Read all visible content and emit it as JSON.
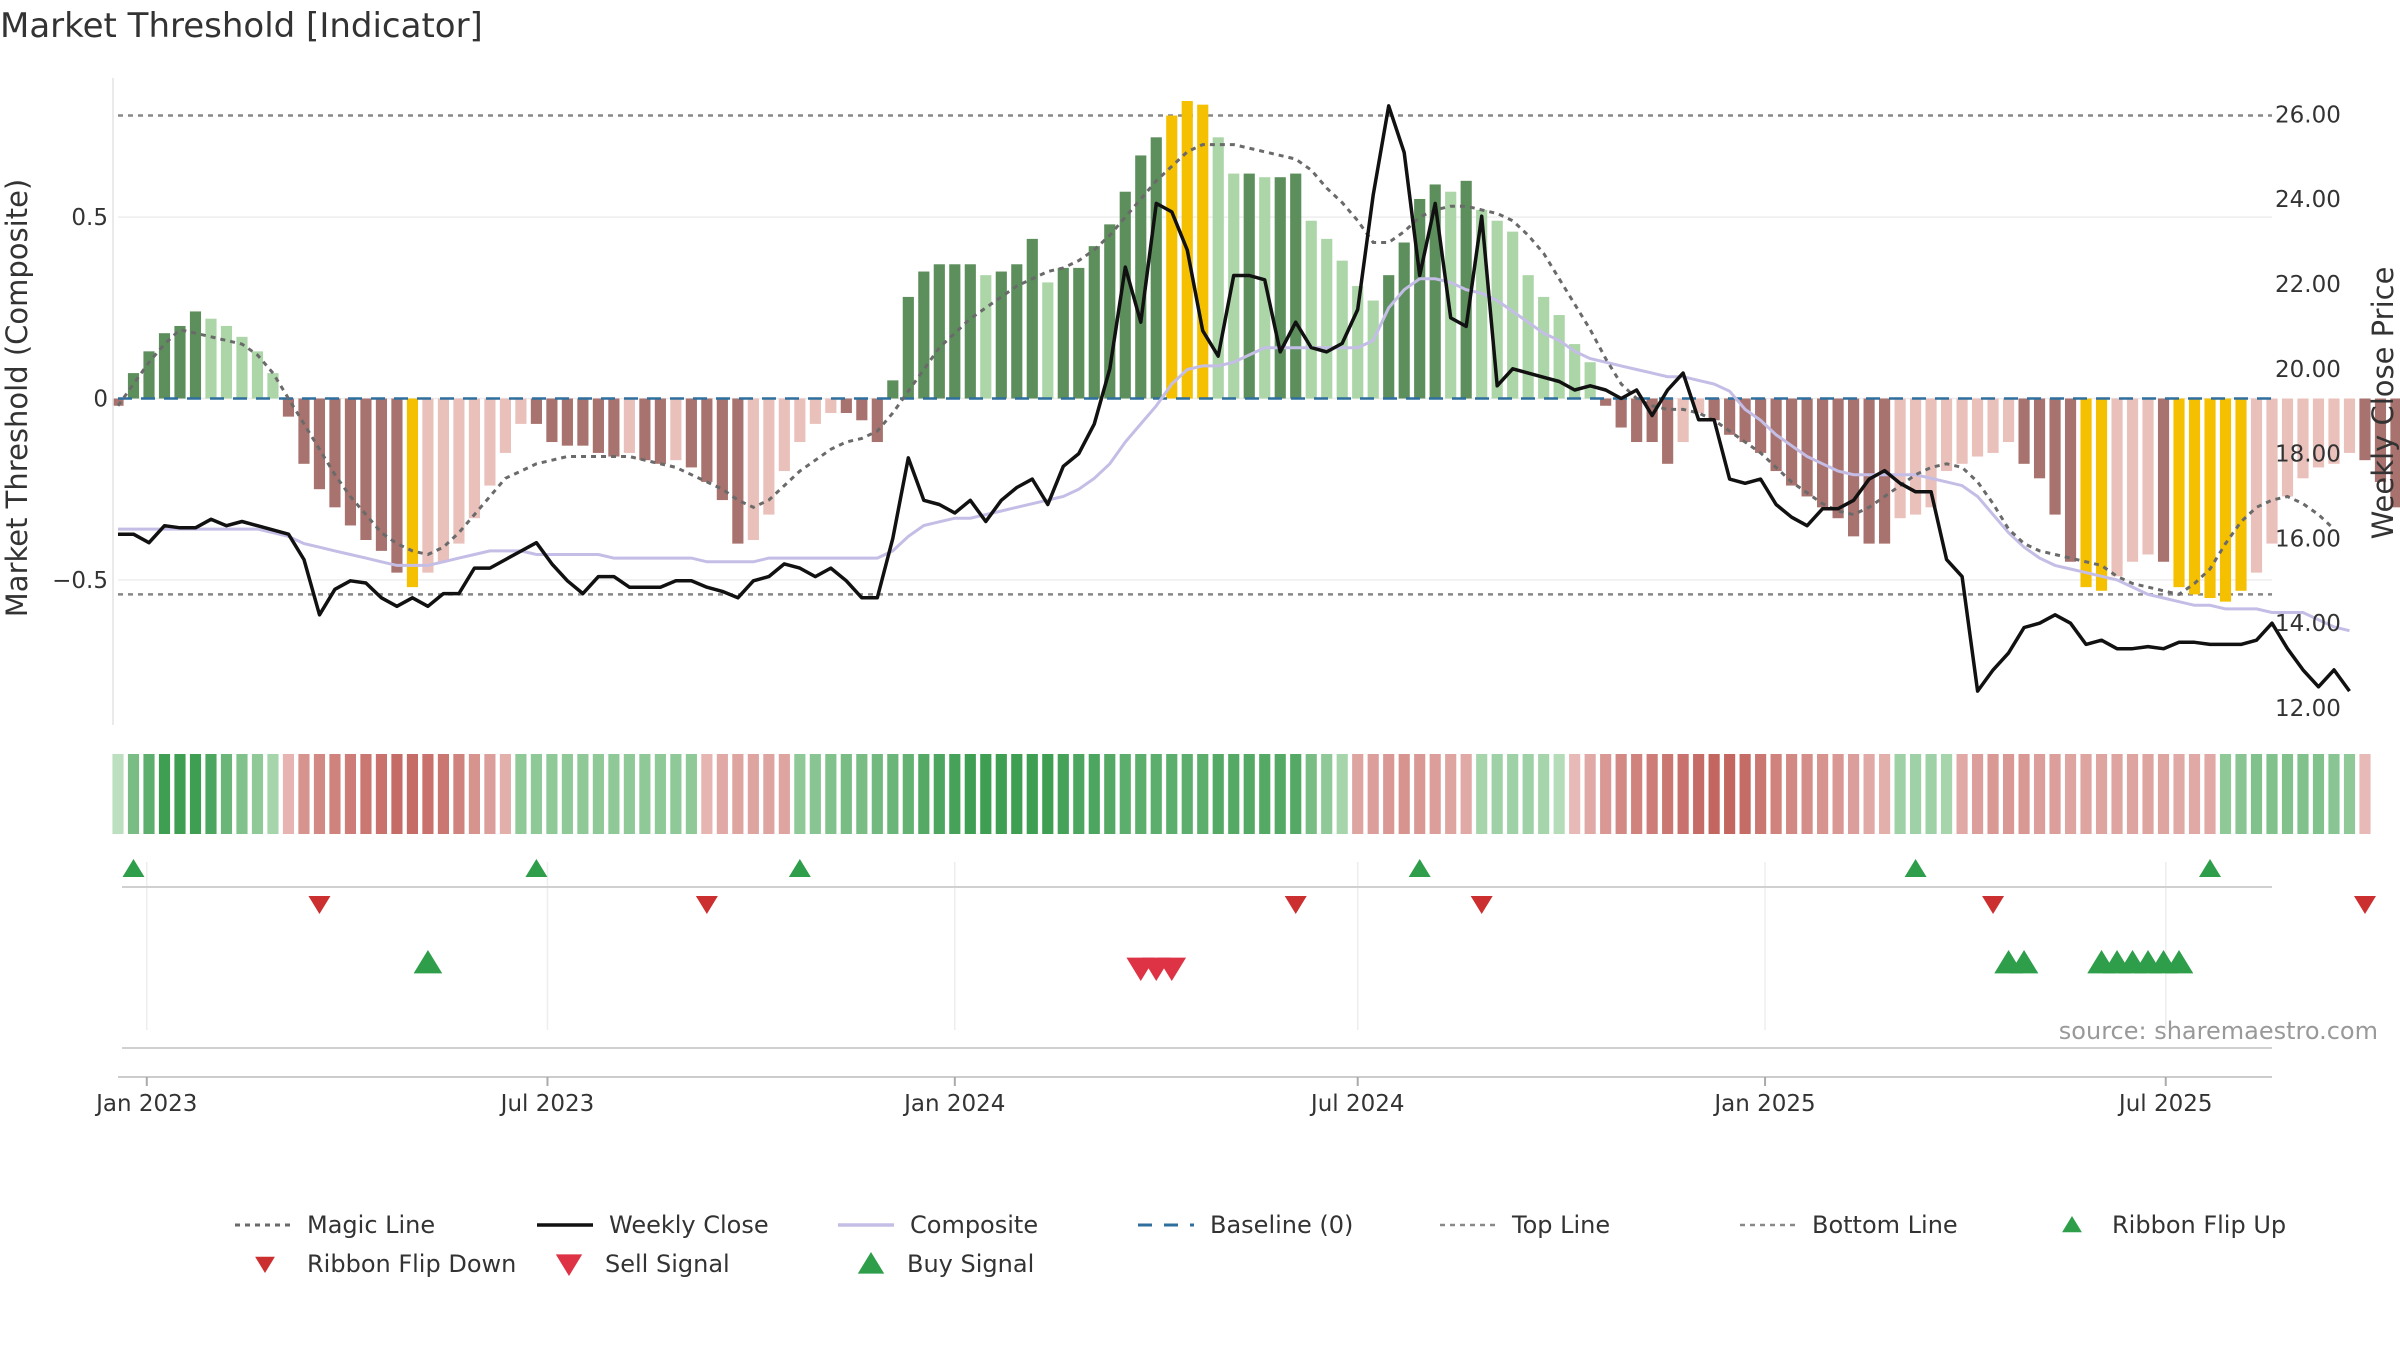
{
  "title": "Market Threshold [Indicator]",
  "source": "source: sharemaestro.com",
  "colors": {
    "gain_strong": "#5d8f5d",
    "gain_weak": "#acd5a8",
    "loss_strong": "#a8726e",
    "loss_weak": "#eac0bb",
    "extreme": "#f5c000",
    "close_line": "#111111",
    "composite_line": "#c4bde6",
    "magic_line": "#6a6a6a",
    "baseline": "#2e6f9e",
    "threshold_line": "#888888",
    "ribbon_flip_up": "#2e9e4a",
    "ribbon_flip_down": "#cc2f2f",
    "sell_signal": "#dd3344",
    "buy_signal": "#2e9e4a"
  },
  "chart_data": {
    "type": "bar",
    "title": "Market Threshold [Indicator]",
    "x_axis": {
      "type": "date",
      "range": [
        "2022-12-19",
        "2025-08-18"
      ],
      "ticks": [
        "2023-01-01",
        "2023-07-01",
        "2024-01-01",
        "2024-07-01",
        "2025-01-01",
        "2025-07-01"
      ],
      "tick_labels": [
        "Jan 2023",
        "Jul 2023",
        "Jan 2024",
        "Jul 2024",
        "Jan 2025",
        "Jul 2025"
      ]
    },
    "y_left": {
      "label": "Market Threshold (Composite)",
      "range": [
        -0.9,
        0.9
      ],
      "ticks": [
        -0.5,
        0,
        0.5
      ],
      "tick_labels": [
        "−0.5",
        "0",
        "0.5"
      ]
    },
    "y_right": {
      "label": "Weekly Close Price",
      "range": [
        11.6,
        27.0
      ],
      "ticks": [
        12,
        14,
        16,
        18,
        20,
        22,
        24,
        26
      ],
      "tick_labels": [
        "12.00",
        "14.00",
        "16.00",
        "18.00",
        "20.00",
        "22.00",
        "24.00",
        "26.00"
      ]
    },
    "grid": true,
    "legend_position": "bottom",
    "start_date": "2022-12-19",
    "top_line": 0.78,
    "bottom_line": -0.54,
    "baseline": 0,
    "composite_bars": [
      -0.02,
      0.07,
      0.13,
      0.18,
      0.2,
      0.24,
      0.22,
      0.2,
      0.17,
      0.13,
      0.07,
      -0.05,
      -0.18,
      -0.25,
      -0.3,
      -0.35,
      -0.39,
      -0.42,
      -0.48,
      -0.52,
      -0.48,
      -0.45,
      -0.4,
      -0.33,
      -0.24,
      -0.15,
      -0.07,
      -0.07,
      -0.12,
      -0.13,
      -0.13,
      -0.15,
      -0.16,
      -0.15,
      -0.17,
      -0.18,
      -0.17,
      -0.19,
      -0.23,
      -0.28,
      -0.4,
      -0.39,
      -0.32,
      -0.2,
      -0.12,
      -0.07,
      -0.04,
      -0.04,
      -0.06,
      -0.12,
      0.05,
      0.28,
      0.35,
      0.37,
      0.37,
      0.37,
      0.34,
      0.35,
      0.37,
      0.44,
      0.32,
      0.36,
      0.36,
      0.42,
      0.48,
      0.57,
      0.67,
      0.72,
      0.78,
      0.82,
      0.81,
      0.72,
      0.62,
      0.62,
      0.61,
      0.61,
      0.62,
      0.49,
      0.44,
      0.38,
      0.31,
      0.27,
      0.34,
      0.43,
      0.55,
      0.59,
      0.57,
      0.6,
      0.52,
      0.49,
      0.46,
      0.34,
      0.28,
      0.23,
      0.15,
      0.1,
      -0.02,
      -0.08,
      -0.12,
      -0.12,
      -0.18,
      -0.12,
      -0.04,
      -0.06,
      -0.1,
      -0.12,
      -0.15,
      -0.2,
      -0.24,
      -0.27,
      -0.3,
      -0.33,
      -0.38,
      -0.4,
      -0.4,
      -0.33,
      -0.32,
      -0.3,
      -0.2,
      -0.18,
      -0.16,
      -0.15,
      -0.12,
      -0.18,
      -0.22,
      -0.32,
      -0.45,
      -0.52,
      -0.53,
      -0.49,
      -0.45,
      -0.43,
      -0.45,
      -0.52,
      -0.54,
      -0.55,
      -0.56,
      -0.53,
      -0.48,
      -0.4,
      -0.27,
      -0.22,
      -0.19,
      -0.18,
      -0.15,
      -0.17,
      -0.23,
      -0.3,
      -0.42,
      -0.43,
      -0.51
    ],
    "weekly_close": [
      16.1,
      16.1,
      15.9,
      16.3,
      16.25,
      16.25,
      16.45,
      16.3,
      16.4,
      16.3,
      16.2,
      16.1,
      15.5,
      14.2,
      14.8,
      15.0,
      14.95,
      14.6,
      14.4,
      14.6,
      14.4,
      14.7,
      14.7,
      15.3,
      15.3,
      15.5,
      15.7,
      15.9,
      15.4,
      15.0,
      14.7,
      15.1,
      15.1,
      14.85,
      14.85,
      14.85,
      15.0,
      15.0,
      14.85,
      14.75,
      14.6,
      15.0,
      15.1,
      15.4,
      15.3,
      15.1,
      15.3,
      15.0,
      14.6,
      14.6,
      16.0,
      17.9,
      16.9,
      16.8,
      16.6,
      16.9,
      16.4,
      16.9,
      17.2,
      17.4,
      16.8,
      17.7,
      18.0,
      18.7,
      20.0,
      22.4,
      21.1,
      23.9,
      23.7,
      22.8,
      20.9,
      20.3,
      22.2,
      22.2,
      22.1,
      20.4,
      21.1,
      20.5,
      20.4,
      20.6,
      21.4,
      24.1,
      26.2,
      25.1,
      22.2,
      23.9,
      21.2,
      21.0,
      23.6,
      19.6,
      20.0,
      19.9,
      19.8,
      19.7,
      19.5,
      19.6,
      19.5,
      19.3,
      19.5,
      18.9,
      19.5,
      19.9,
      18.8,
      18.8,
      17.4,
      17.3,
      17.4,
      16.8,
      16.5,
      16.3,
      16.7,
      16.7,
      16.9,
      17.4,
      17.6,
      17.3,
      17.1,
      17.1,
      15.5,
      15.1,
      12.4,
      12.9,
      13.3,
      13.9,
      14.0,
      14.2,
      14.0,
      13.5,
      13.6,
      13.4,
      13.4,
      13.45,
      13.4,
      13.55,
      13.55,
      13.5,
      13.5,
      13.5,
      13.6,
      14.0,
      13.4,
      12.9,
      12.5,
      12.9,
      12.4
    ],
    "composite_line": [
      -0.36,
      -0.36,
      -0.36,
      -0.36,
      -0.36,
      -0.36,
      -0.36,
      -0.36,
      -0.36,
      -0.36,
      -0.37,
      -0.38,
      -0.4,
      -0.41,
      -0.42,
      -0.43,
      -0.44,
      -0.45,
      -0.46,
      -0.46,
      -0.46,
      -0.45,
      -0.44,
      -0.43,
      -0.42,
      -0.42,
      -0.42,
      -0.43,
      -0.43,
      -0.43,
      -0.43,
      -0.43,
      -0.44,
      -0.44,
      -0.44,
      -0.44,
      -0.44,
      -0.44,
      -0.45,
      -0.45,
      -0.45,
      -0.45,
      -0.44,
      -0.44,
      -0.44,
      -0.44,
      -0.44,
      -0.44,
      -0.44,
      -0.44,
      -0.42,
      -0.38,
      -0.35,
      -0.34,
      -0.33,
      -0.33,
      -0.32,
      -0.31,
      -0.3,
      -0.29,
      -0.28,
      -0.27,
      -0.25,
      -0.22,
      -0.18,
      -0.12,
      -0.07,
      -0.02,
      0.04,
      0.08,
      0.09,
      0.09,
      0.1,
      0.12,
      0.14,
      0.14,
      0.14,
      0.14,
      0.14,
      0.14,
      0.14,
      0.16,
      0.25,
      0.3,
      0.33,
      0.33,
      0.32,
      0.3,
      0.29,
      0.27,
      0.24,
      0.21,
      0.18,
      0.16,
      0.13,
      0.11,
      0.1,
      0.09,
      0.08,
      0.07,
      0.06,
      0.06,
      0.05,
      0.04,
      0.02,
      -0.03,
      -0.06,
      -0.1,
      -0.13,
      -0.16,
      -0.18,
      -0.2,
      -0.21,
      -0.21,
      -0.21,
      -0.21,
      -0.21,
      -0.22,
      -0.23,
      -0.24,
      -0.27,
      -0.32,
      -0.37,
      -0.41,
      -0.44,
      -0.46,
      -0.47,
      -0.48,
      -0.49,
      -0.5,
      -0.52,
      -0.54,
      -0.55,
      -0.56,
      -0.57,
      -0.57,
      -0.58,
      -0.58,
      -0.58,
      -0.59,
      -0.59,
      -0.59,
      -0.61,
      -0.63,
      -0.64
    ],
    "magic_line": [
      -0.02,
      0.04,
      0.1,
      0.15,
      0.19,
      0.18,
      0.17,
      0.16,
      0.15,
      0.12,
      0.07,
      0.0,
      -0.07,
      -0.14,
      -0.21,
      -0.27,
      -0.32,
      -0.37,
      -0.4,
      -0.42,
      -0.43,
      -0.41,
      -0.37,
      -0.32,
      -0.27,
      -0.22,
      -0.2,
      -0.18,
      -0.17,
      -0.16,
      -0.16,
      -0.16,
      -0.16,
      -0.16,
      -0.17,
      -0.18,
      -0.19,
      -0.21,
      -0.23,
      -0.25,
      -0.28,
      -0.3,
      -0.28,
      -0.24,
      -0.2,
      -0.17,
      -0.14,
      -0.12,
      -0.11,
      -0.09,
      -0.04,
      0.02,
      0.08,
      0.14,
      0.18,
      0.22,
      0.25,
      0.28,
      0.31,
      0.33,
      0.35,
      0.36,
      0.38,
      0.41,
      0.45,
      0.5,
      0.55,
      0.6,
      0.64,
      0.68,
      0.7,
      0.7,
      0.7,
      0.69,
      0.68,
      0.67,
      0.66,
      0.63,
      0.58,
      0.54,
      0.49,
      0.43,
      0.43,
      0.46,
      0.5,
      0.52,
      0.53,
      0.53,
      0.52,
      0.51,
      0.49,
      0.45,
      0.4,
      0.33,
      0.26,
      0.19,
      0.11,
      0.04,
      0.0,
      -0.02,
      -0.03,
      -0.03,
      -0.04,
      -0.06,
      -0.09,
      -0.12,
      -0.15,
      -0.19,
      -0.23,
      -0.26,
      -0.29,
      -0.31,
      -0.32,
      -0.3,
      -0.27,
      -0.24,
      -0.21,
      -0.19,
      -0.18,
      -0.19,
      -0.23,
      -0.29,
      -0.36,
      -0.4,
      -0.42,
      -0.43,
      -0.44,
      -0.45,
      -0.46,
      -0.49,
      -0.51,
      -0.52,
      -0.53,
      -0.54,
      -0.51,
      -0.47,
      -0.4,
      -0.34,
      -0.3,
      -0.28,
      -0.27,
      -0.29,
      -0.32,
      -0.36
    ],
    "ribbon": [
      0.15,
      0.6,
      0.8,
      1.0,
      1.0,
      1.0,
      0.9,
      0.7,
      0.55,
      0.45,
      0.3,
      -0.3,
      -0.6,
      -0.7,
      -0.75,
      -0.8,
      -0.85,
      -0.9,
      -0.95,
      -0.95,
      -0.9,
      -0.85,
      -0.75,
      -0.6,
      -0.5,
      -0.35,
      0.45,
      0.45,
      0.45,
      0.45,
      0.45,
      0.45,
      0.45,
      0.45,
      0.45,
      0.45,
      0.45,
      0.45,
      -0.3,
      -0.4,
      -0.45,
      -0.45,
      -0.45,
      -0.45,
      0.45,
      0.5,
      0.55,
      0.6,
      0.6,
      0.65,
      0.7,
      0.75,
      0.85,
      0.9,
      0.95,
      1.0,
      1.0,
      1.0,
      1.0,
      1.0,
      1.0,
      0.95,
      0.9,
      0.9,
      0.85,
      0.8,
      0.8,
      0.8,
      0.8,
      0.8,
      0.8,
      0.85,
      0.85,
      0.85,
      0.85,
      0.85,
      0.85,
      0.6,
      0.45,
      0.3,
      -0.45,
      -0.5,
      -0.55,
      -0.6,
      -0.55,
      -0.5,
      -0.45,
      -0.4,
      0.3,
      0.35,
      0.35,
      0.35,
      0.3,
      0.2,
      -0.25,
      -0.4,
      -0.55,
      -0.7,
      -0.75,
      -0.8,
      -0.85,
      -0.9,
      -0.95,
      -1.0,
      -1.0,
      -0.95,
      -0.85,
      -0.75,
      -0.7,
      -0.65,
      -0.6,
      -0.55,
      -0.5,
      -0.4,
      -0.35,
      0.35,
      0.35,
      0.35,
      0.3,
      -0.4,
      -0.5,
      -0.55,
      -0.55,
      -0.55,
      -0.5,
      -0.5,
      -0.45,
      -0.45,
      -0.45,
      -0.45,
      -0.45,
      -0.45,
      -0.45,
      -0.4,
      -0.4,
      -0.4,
      0.45,
      0.5,
      0.55,
      0.55,
      0.55,
      0.55,
      0.55,
      0.5,
      0.45,
      -0.25
    ],
    "ribbon_flip_up": [
      1,
      27,
      44,
      84,
      116,
      135
    ],
    "ribbon_flip_down": [
      13,
      38,
      76,
      88,
      121,
      145
    ],
    "buy_signals": [
      20,
      122,
      123,
      128,
      129,
      130,
      131,
      132,
      133
    ],
    "sell_signals": [
      66,
      67,
      68
    ],
    "legend": [
      "Magic Line",
      "Weekly Close",
      "Composite",
      "Baseline (0)",
      "Top Line",
      "Bottom Line",
      "Ribbon Flip Up",
      "Ribbon Flip Down",
      "Sell Signal",
      "Buy Signal"
    ]
  }
}
